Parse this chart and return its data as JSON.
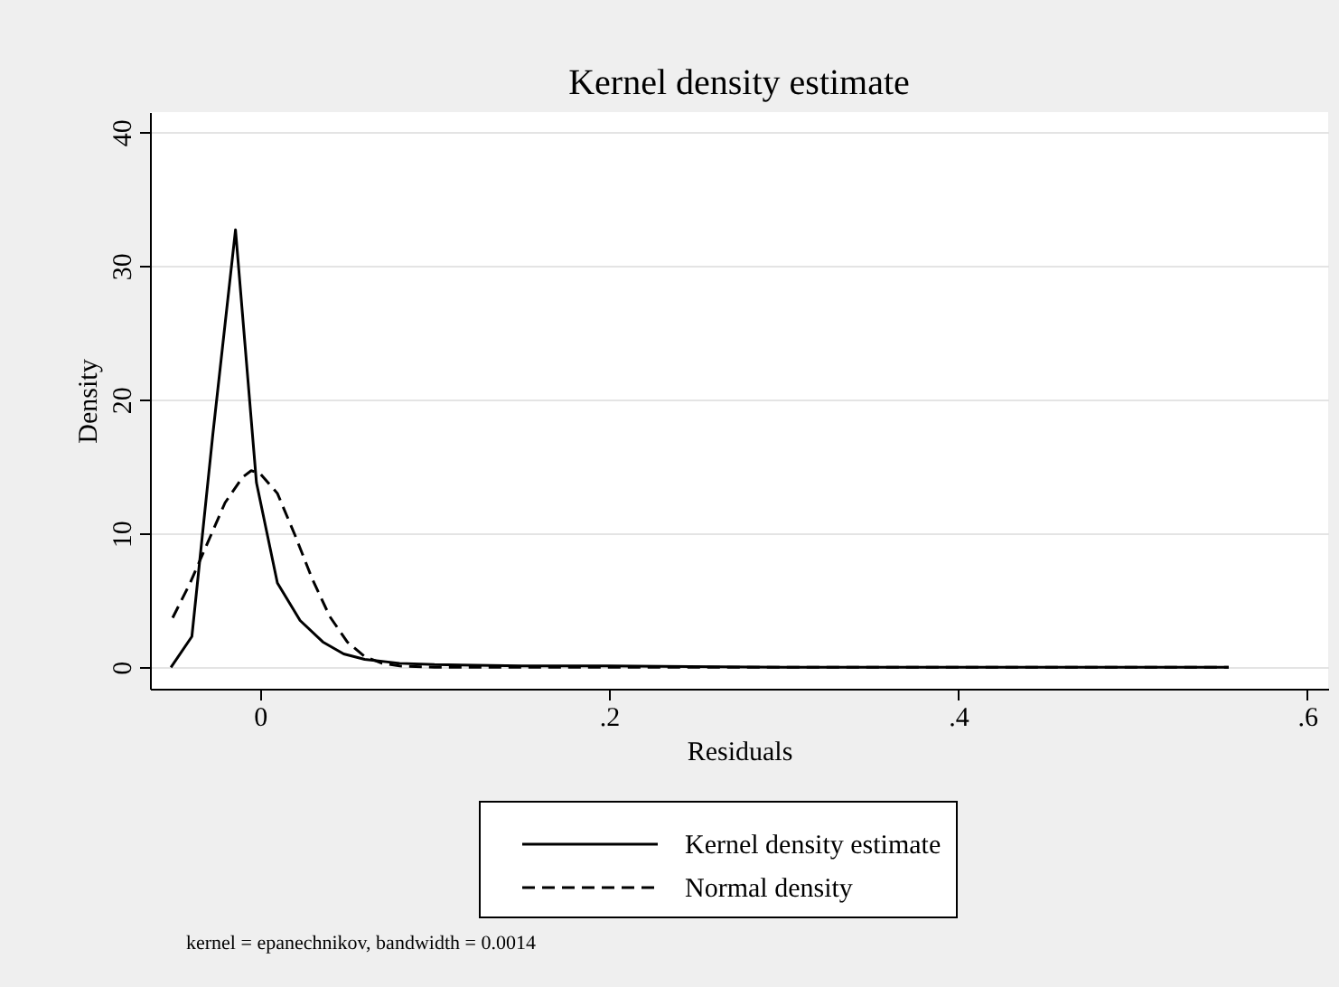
{
  "chart_data": {
    "type": "line",
    "title": "Kernel density estimate",
    "xlabel": "Residuals",
    "ylabel": "Density",
    "xlim": [
      -0.063,
      0.612
    ],
    "xticks": [
      0,
      {
        "value": 0.2,
        "label": ".2"
      },
      {
        "value": 0.4,
        "label": ".4"
      },
      {
        "value": 0.6,
        "label": ".6"
      }
    ],
    "ylim": [
      -1.6,
      41.5
    ],
    "yticks": [
      0,
      10,
      20,
      30,
      40
    ],
    "grid": "y",
    "legend": "bottom",
    "annotations": [
      "kernel = epanechnikov, bandwidth = 0.0014"
    ],
    "series": [
      {
        "name": "Kernel density estimate",
        "color": "#000000",
        "line_style": "solid",
        "x": [
          -0.051,
          -0.039,
          -0.027,
          -0.014,
          -0.002,
          0.01,
          0.023,
          0.036,
          0.048,
          0.06,
          0.08,
          0.1,
          0.15,
          0.2,
          0.3,
          0.4,
          0.5,
          0.555
        ],
        "values": [
          0,
          2.3,
          17.4,
          32.7,
          13.8,
          6.3,
          3.5,
          1.9,
          1.0,
          0.6,
          0.3,
          0.2,
          0.1,
          0.1,
          0,
          0,
          0,
          0
        ]
      },
      {
        "name": "Normal density",
        "color": "#000000",
        "line_style": "dashed",
        "x": [
          -0.05,
          -0.04,
          -0.03,
          -0.02,
          -0.01,
          -0.005,
          0,
          0.01,
          0.02,
          0.03,
          0.04,
          0.05,
          0.06,
          0.07,
          0.08,
          0.1,
          0.2,
          0.3,
          0.4,
          0.555
        ],
        "values": [
          3.7,
          6.3,
          9.3,
          12.3,
          14.2,
          14.7,
          14.5,
          13.0,
          9.9,
          6.6,
          3.8,
          1.9,
          0.8,
          0.3,
          0.1,
          0,
          0,
          0,
          0,
          0
        ]
      }
    ]
  }
}
